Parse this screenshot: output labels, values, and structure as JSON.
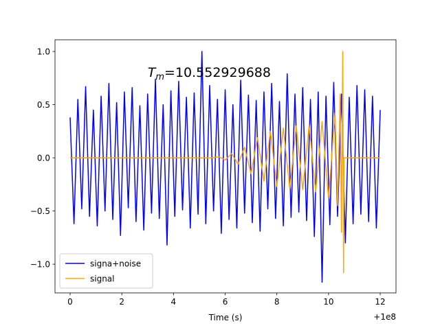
{
  "chart_data": {
    "type": "line",
    "annotation": {
      "symbol": "T",
      "subscript": "m",
      "text": "=10.552929688",
      "x": 3.0,
      "y": 0.8
    },
    "x_label": "Time (s)",
    "x_offset_label": "+1e8",
    "xlim": [
      -0.585,
      12.61
    ],
    "ylim": [
      -1.27,
      1.11
    ],
    "xticks": [
      0,
      2,
      4,
      6,
      8,
      10,
      12
    ],
    "yticks": [
      {
        "value": -1,
        "label": "−1.0"
      },
      {
        "value": -0.5,
        "label": "−0.5"
      },
      {
        "value": 0,
        "label": "0.0"
      },
      {
        "value": 0.5,
        "label": "0.5"
      },
      {
        "value": 1,
        "label": "1.0"
      }
    ],
    "legend": "lower left",
    "series": [
      {
        "name": "signa+noise",
        "color": "#0000ff",
        "x": [
          0,
          0.15,
          0.3,
          0.45,
          0.6,
          0.75,
          0.9,
          1.05,
          1.2,
          1.35,
          1.5,
          1.65,
          1.8,
          1.95,
          2.1,
          2.25,
          2.4,
          2.55,
          2.7,
          2.85,
          3.0,
          3.15,
          3.3,
          3.45,
          3.6,
          3.75,
          3.9,
          4.05,
          4.2,
          4.35,
          4.5,
          4.65,
          4.8,
          4.95,
          5.1,
          5.25,
          5.4,
          5.55,
          5.7,
          5.85,
          6.0,
          6.15,
          6.3,
          6.45,
          6.6,
          6.75,
          6.9,
          7.05,
          7.2,
          7.35,
          7.5,
          7.65,
          7.8,
          7.95,
          8.1,
          8.25,
          8.4,
          8.55,
          8.7,
          8.85,
          9.0,
          9.15,
          9.3,
          9.45,
          9.6,
          9.75,
          9.9,
          10.05,
          10.2,
          10.35,
          10.5,
          10.65,
          10.8,
          10.95,
          11.1,
          11.25,
          11.4,
          11.55,
          11.7,
          11.85,
          12.0
        ],
        "values": [
          0.38,
          -0.62,
          0.55,
          -0.48,
          0.67,
          -0.55,
          0.45,
          -0.64,
          0.58,
          -0.5,
          0.7,
          -0.58,
          0.52,
          -0.73,
          0.62,
          -0.47,
          0.66,
          -0.6,
          0.49,
          -0.68,
          0.6,
          -0.52,
          0.74,
          -0.57,
          0.5,
          -0.82,
          0.63,
          -0.55,
          0.72,
          -0.49,
          0.57,
          -0.66,
          0.61,
          -0.53,
          1.0,
          -0.62,
          0.68,
          -0.5,
          0.55,
          -0.71,
          0.64,
          -0.58,
          0.5,
          -0.66,
          0.73,
          -0.52,
          0.59,
          -0.61,
          0.54,
          -0.69,
          0.62,
          -0.48,
          0.7,
          -0.57,
          0.53,
          -0.64,
          0.79,
          -0.56,
          0.6,
          -0.51,
          0.66,
          -0.59,
          0.55,
          -0.74,
          0.62,
          -1.17,
          0.58,
          -0.63,
          0.71,
          -0.55,
          0.6,
          -0.8,
          0.57,
          -0.62,
          0.68,
          -0.53,
          0.64,
          -0.6,
          0.58,
          -0.66,
          0.45
        ]
      },
      {
        "name": "signal",
        "color": "#ffa500",
        "x": [
          0,
          5.5,
          5.75,
          6.0,
          6.25,
          6.5,
          6.75,
          7.0,
          7.25,
          7.5,
          7.75,
          8.0,
          8.25,
          8.5,
          8.75,
          9.0,
          9.25,
          9.5,
          9.75,
          10.0,
          10.25,
          10.35,
          10.45,
          10.5,
          10.55,
          10.58,
          10.6,
          12
        ],
        "values": [
          0,
          0,
          0.01,
          -0.02,
          0.04,
          -0.06,
          0.1,
          -0.15,
          0.19,
          -0.22,
          0.25,
          -0.27,
          0.28,
          -0.29,
          0.3,
          -0.3,
          0.31,
          -0.32,
          0.34,
          -0.38,
          0.42,
          -0.45,
          0.6,
          -0.7,
          1.0,
          -1.08,
          0,
          0
        ]
      }
    ]
  }
}
